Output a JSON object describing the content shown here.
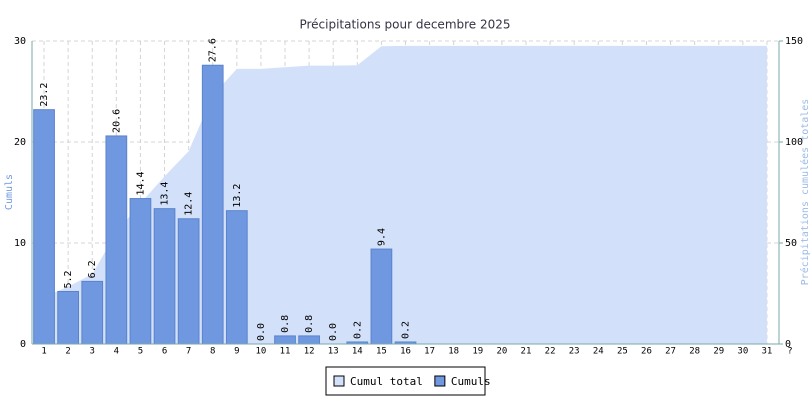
{
  "chart_data": {
    "type": "bar",
    "title": "Précipitations pour decembre 2025",
    "ylabel": "Cumuls",
    "y2label": "Précipitations cumulées totales",
    "categories": [
      "1",
      "2",
      "3",
      "4",
      "5",
      "6",
      "7",
      "8",
      "9",
      "10",
      "11",
      "12",
      "13",
      "14",
      "15",
      "16",
      "17",
      "18",
      "19",
      "20",
      "21",
      "22",
      "23",
      "24",
      "25",
      "26",
      "27",
      "28",
      "29",
      "30",
      "31"
    ],
    "x_end_label": "?",
    "series": [
      {
        "name": "Cumul total",
        "type": "area",
        "axis": "y2",
        "color": "#d3e0fa",
        "values": [
          23.2,
          28.4,
          34.6,
          55.2,
          69.6,
          83.0,
          95.4,
          123.0,
          136.2,
          136.2,
          137.0,
          137.8,
          137.8,
          138.0,
          147.4,
          147.6,
          147.6,
          147.6,
          147.6,
          147.6,
          147.6,
          147.6,
          147.6,
          147.6,
          147.6,
          147.6,
          147.6,
          147.6,
          147.6,
          147.6,
          147.6
        ]
      },
      {
        "name": "Cumuls",
        "type": "bar",
        "color": "#6f98e0",
        "values": [
          23.2,
          5.2,
          6.2,
          20.6,
          14.4,
          13.4,
          12.4,
          27.6,
          13.2,
          0,
          0.8,
          0.8,
          0,
          0.2,
          9.4,
          0.2,
          null,
          null,
          null,
          null,
          null,
          null,
          null,
          null,
          null,
          null,
          null,
          null,
          null,
          null,
          null
        ],
        "value_labels": [
          "23.2",
          "5.2",
          "6.2",
          "20.6",
          "14.4",
          "13.4",
          "12.4",
          "27.6",
          "13.2",
          "0.0",
          "0.8",
          "0.8",
          "0.0",
          "0.2",
          "9.4",
          "0.2",
          null,
          null,
          null,
          null,
          null,
          null,
          null,
          null,
          null,
          null,
          null,
          null,
          null,
          null,
          null
        ]
      }
    ],
    "ylim": [
      0,
      30
    ],
    "yticks": [
      0,
      10,
      20,
      30
    ],
    "y2lim": [
      0,
      150
    ],
    "y2ticks": [
      0,
      50,
      100,
      150
    ],
    "grid": true
  }
}
